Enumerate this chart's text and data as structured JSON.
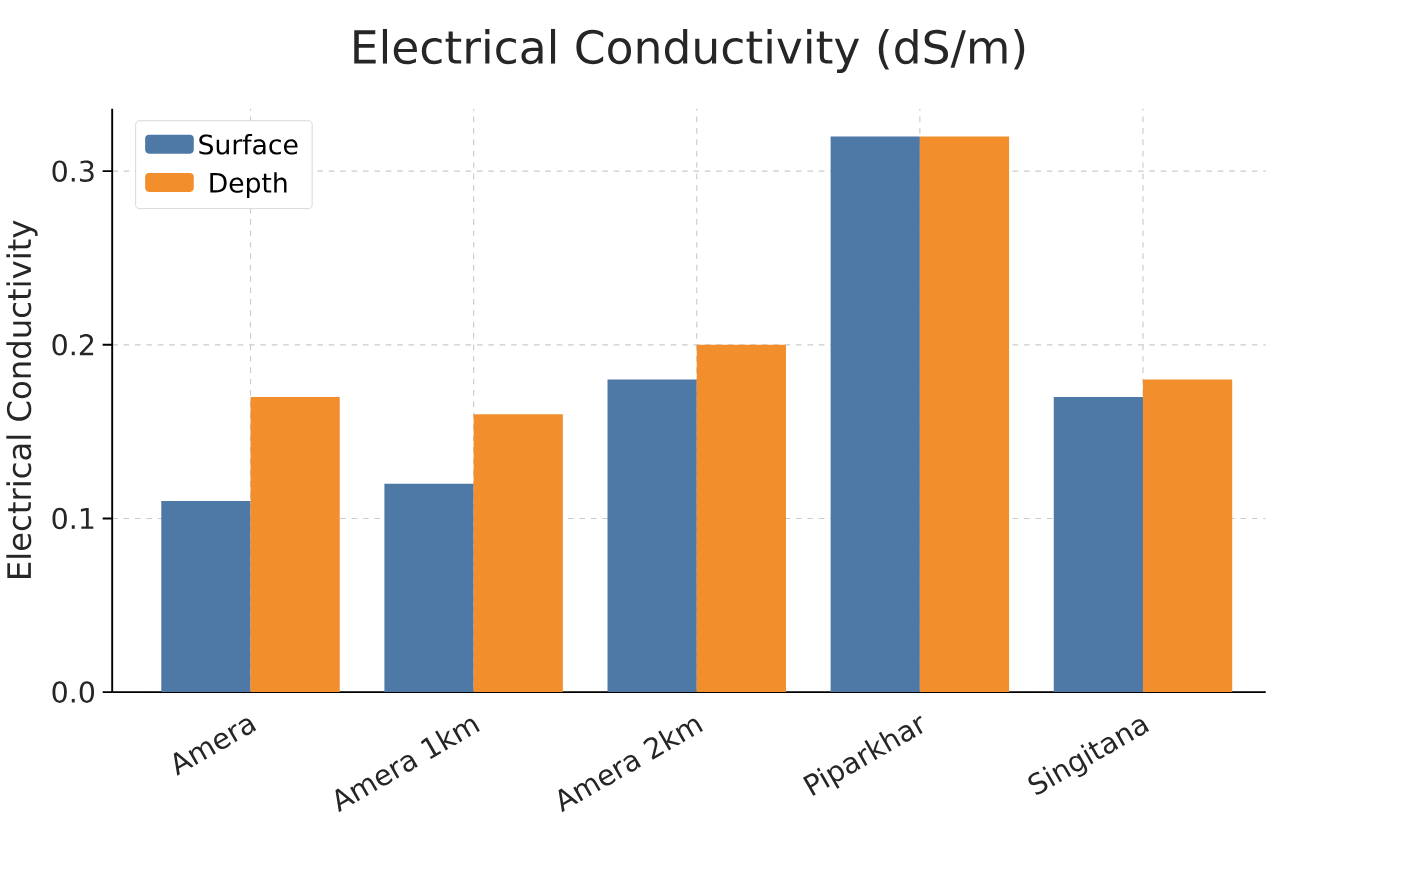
{
  "chart_data": {
    "type": "bar",
    "title": "Electrical Conductivity (dS/m)",
    "ylabel": "Electrical Conductivity",
    "categories": [
      "Amera",
      "Amera 1km",
      "Amera 2km",
      "Piparkhar",
      "Singitana"
    ],
    "series": [
      {
        "name": "Surface",
        "color": "#4e79a7",
        "values": [
          0.11,
          0.12,
          0.18,
          0.32,
          0.17
        ]
      },
      {
        "name": "Depth",
        "color": "#f28e2b",
        "values": [
          0.17,
          0.16,
          0.2,
          0.32,
          0.18
        ]
      }
    ],
    "ylim": [
      0,
      0.336
    ],
    "yticks": [
      {
        "value": 0,
        "label": "0.0"
      },
      0.1,
      0.2,
      0.3
    ],
    "grid": true,
    "legend": "top left"
  }
}
